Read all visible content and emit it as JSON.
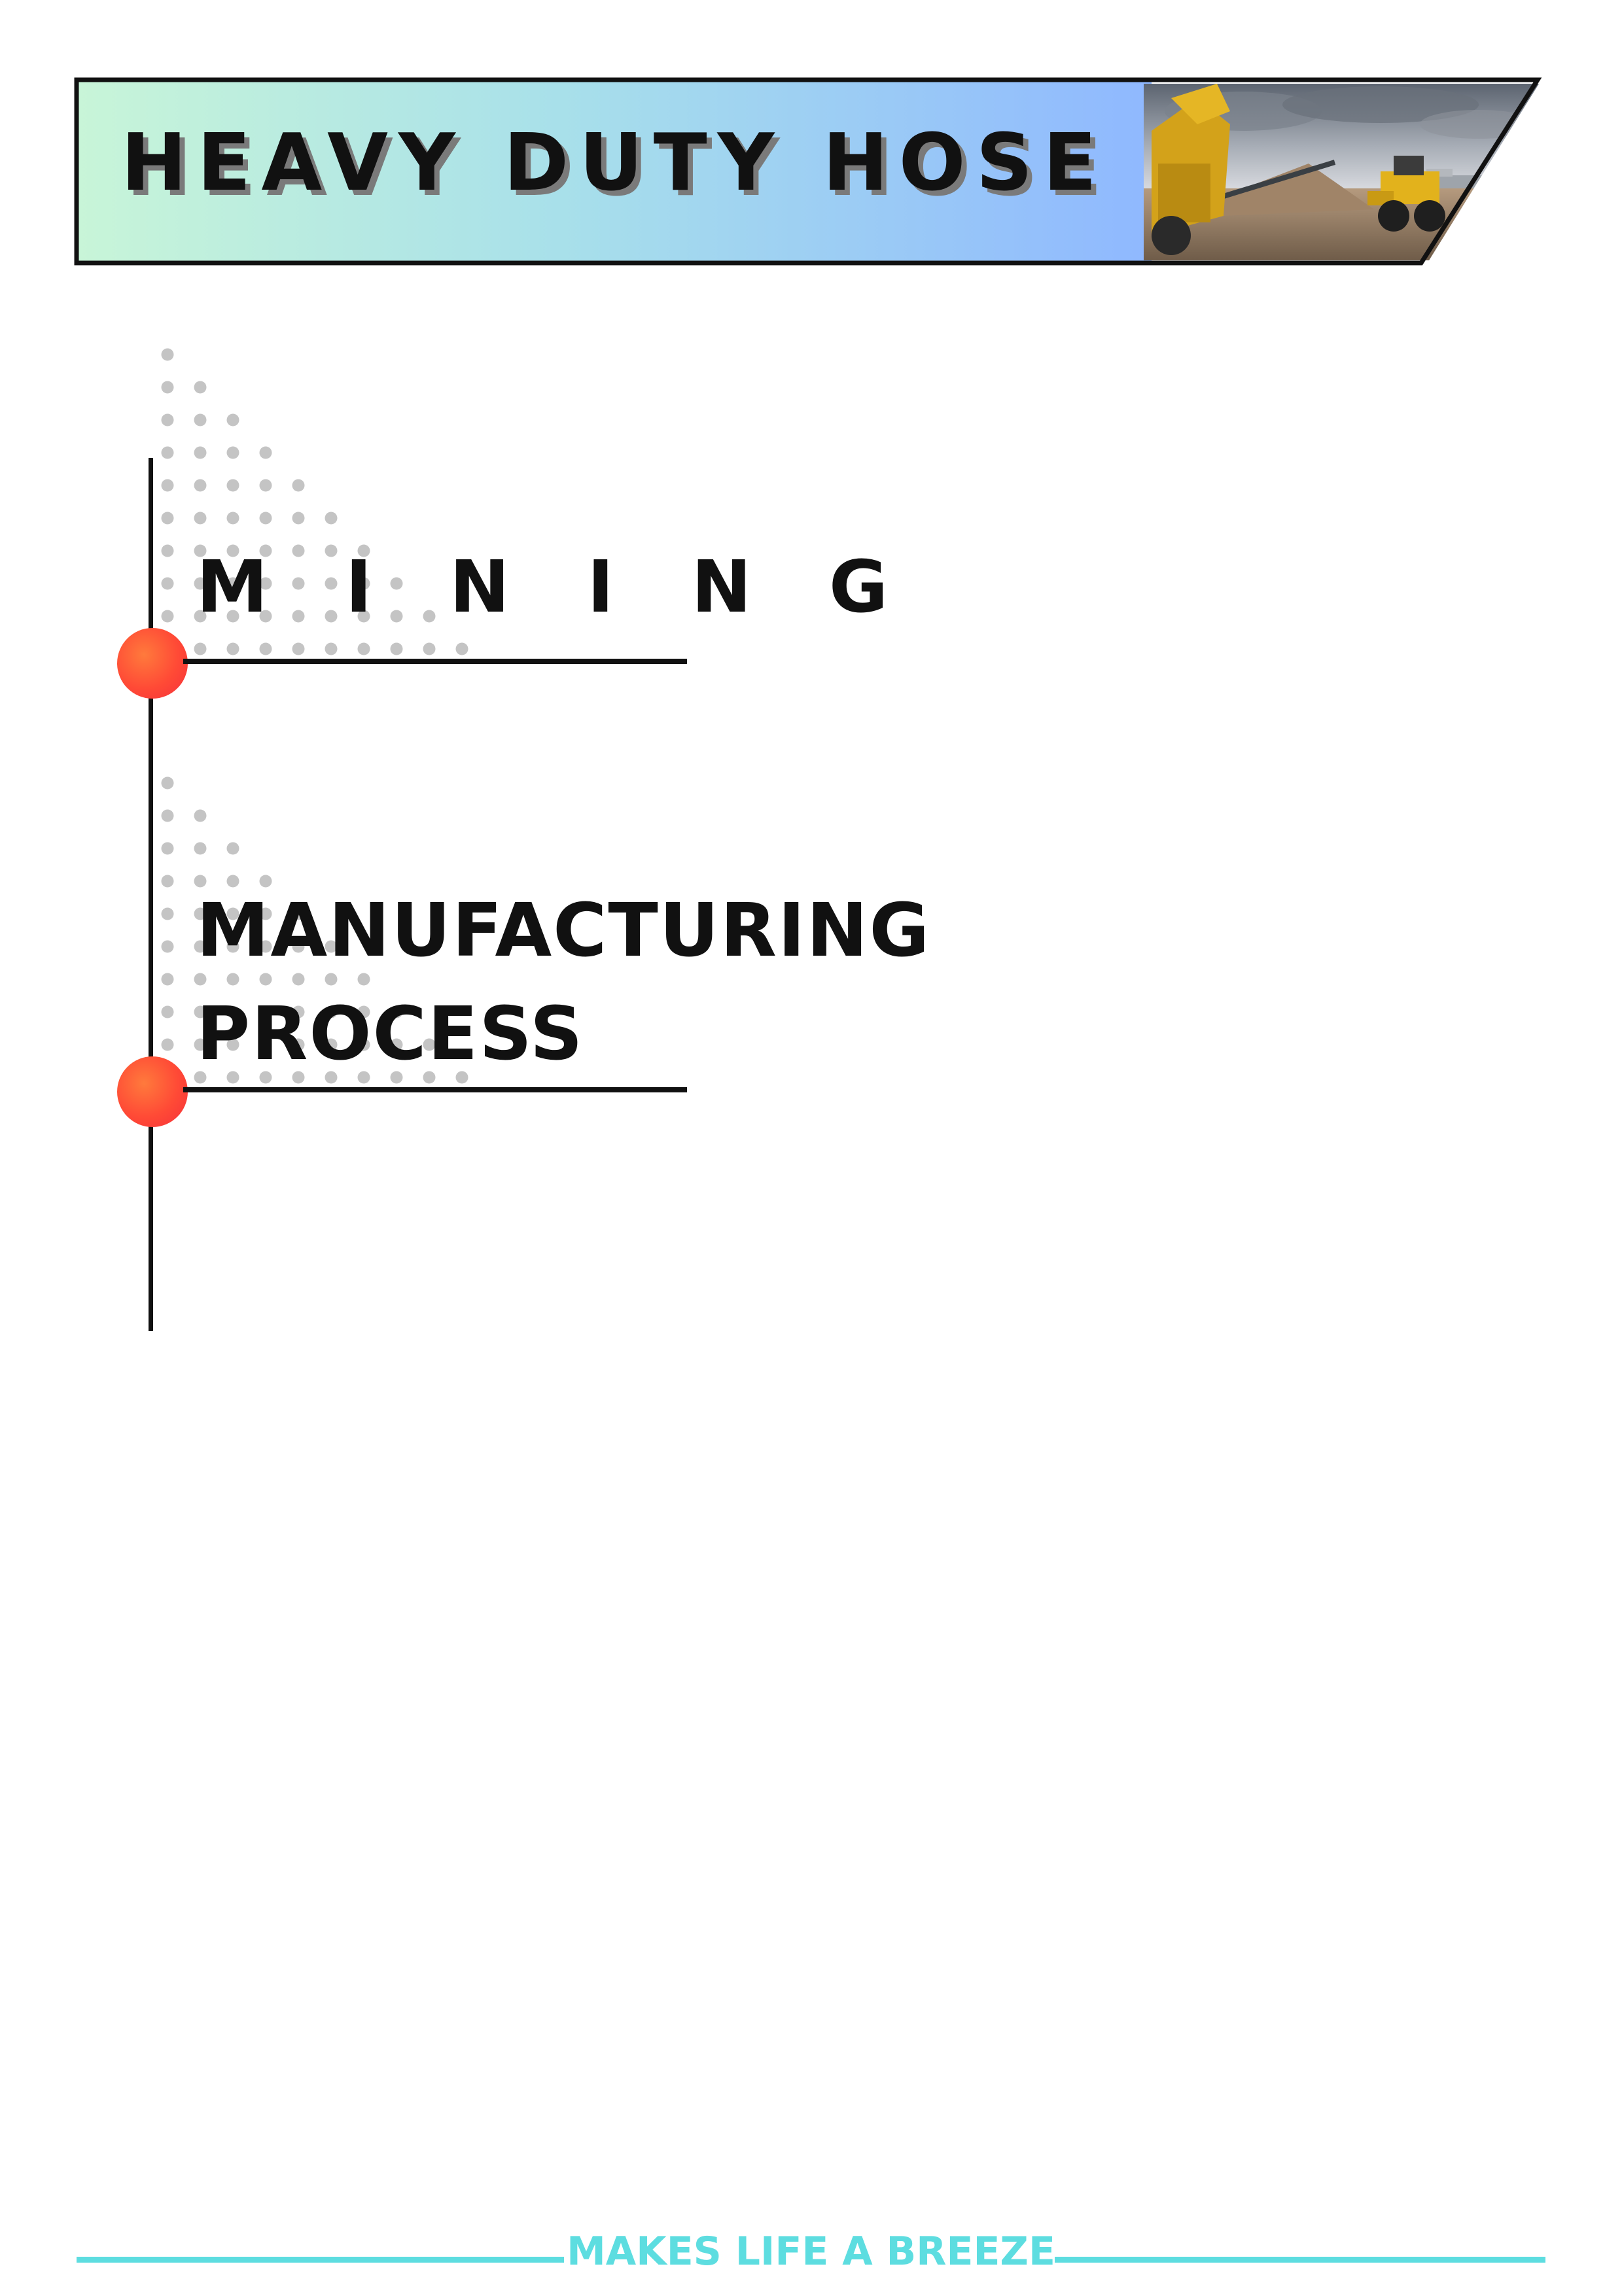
{
  "header": {
    "title": "HEAVY DUTY HOSE",
    "photo_icon": "construction-site-photo"
  },
  "sections": [
    {
      "title": "M I N I N G"
    },
    {
      "title_lines": [
        "MANUFACTURING",
        "PROCESS"
      ]
    }
  ],
  "footer": {
    "tagline": "MAKES LIFE A BREEZE"
  },
  "colors": {
    "accent_dot": "#f5413a",
    "footer_accent": "#5ddde0",
    "banner_gradient_start": "#c8f5d8",
    "banner_gradient_end": "#8fb8ff"
  }
}
